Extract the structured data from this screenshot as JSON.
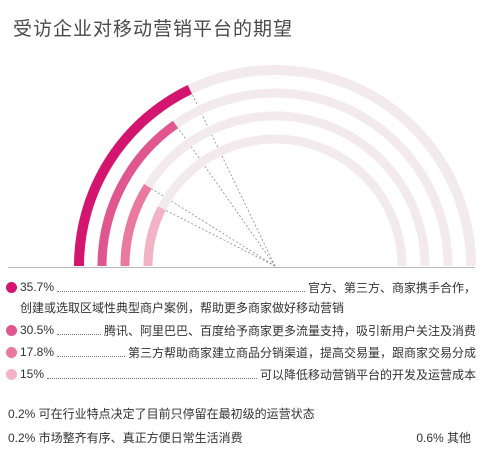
{
  "chart_data": {
    "type": "radial-bar",
    "title": "受访企业对移动营销平台的期望",
    "series": [
      {
        "value": 35.7,
        "pct_label": "35.7%",
        "text": "官方、第三方、商家携手合作，",
        "text_cont": "创建或选取区域性典型商户案例，帮助更多商家做好移动营销",
        "color": "#d4156f"
      },
      {
        "value": 30.5,
        "pct_label": "30.5%",
        "text": "腾讯、阿里巴巴、百度给予商家更多流量支持，吸引新用户关注及消费",
        "color": "#e0568e"
      },
      {
        "value": 17.8,
        "pct_label": "17.8%",
        "text": "第三方帮助商家建立商品分销渠道，提高交易量，跟商家交易分成",
        "color": "#e9799f"
      },
      {
        "value": 15,
        "pct_label": "15%",
        "text": "可以降低移动营销平台的开发及运营成本",
        "color": "#f2b3c7"
      }
    ],
    "others": [
      {
        "value": 0.2,
        "text": "0.2% 可在行业特点决定了目前只停留在最初级的运营状态"
      },
      {
        "value": 0.2,
        "text": "0.2% 市场整齐有序、真正方便日常生活消费"
      },
      {
        "value": 0.6,
        "text": "0.6% 其他"
      }
    ],
    "track_color": "#f3eaee",
    "max": 100
  }
}
